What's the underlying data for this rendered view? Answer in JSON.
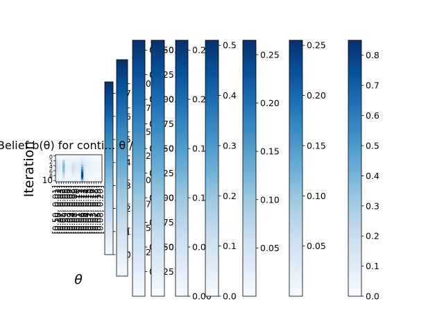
{
  "chart_data": {
    "type": "heatmap",
    "title": "Belief b(θ) for conti… θ /",
    "xlabel": "θ",
    "ylabel": "Iteration",
    "y_ticks": [
      "0",
      "2",
      "4",
      "6",
      "8",
      "10"
    ],
    "colormap": "Blues",
    "heatmap_rows": 11,
    "heatmap_cols": 20,
    "heatmap_values": [
      [
        0.05,
        0.02,
        0.02,
        0.02,
        0.03,
        0.02,
        0.02,
        0.02,
        0.02,
        0.03,
        0.04,
        0.05,
        0.04,
        0.03,
        0.03,
        0.02,
        0.02,
        0.02,
        0.02,
        0.02
      ],
      [
        0.08,
        0.04,
        0.03,
        0.03,
        0.05,
        0.03,
        0.03,
        0.04,
        0.04,
        0.05,
        0.06,
        0.09,
        0.07,
        0.05,
        0.05,
        0.03,
        0.03,
        0.02,
        0.02,
        0.02
      ],
      [
        0.18,
        0.08,
        0.05,
        0.3,
        0.06,
        0.05,
        0.06,
        0.1,
        0.08,
        0.07,
        0.1,
        0.15,
        0.1,
        0.07,
        0.06,
        0.05,
        0.04,
        0.04,
        0.03,
        0.03
      ],
      [
        0.2,
        0.1,
        0.06,
        0.4,
        0.07,
        0.06,
        0.08,
        0.15,
        0.12,
        0.1,
        0.12,
        0.25,
        0.12,
        0.08,
        0.07,
        0.06,
        0.05,
        0.04,
        0.04,
        0.03
      ],
      [
        0.22,
        0.12,
        0.07,
        0.45,
        0.08,
        0.07,
        0.09,
        0.2,
        0.14,
        0.12,
        0.14,
        0.4,
        0.14,
        0.09,
        0.08,
        0.06,
        0.05,
        0.05,
        0.04,
        0.03
      ],
      [
        0.22,
        0.12,
        0.07,
        0.45,
        0.08,
        0.07,
        0.09,
        0.22,
        0.14,
        0.12,
        0.14,
        0.55,
        0.15,
        0.09,
        0.08,
        0.06,
        0.05,
        0.05,
        0.04,
        0.03
      ],
      [
        0.2,
        0.11,
        0.06,
        0.42,
        0.07,
        0.06,
        0.08,
        0.2,
        0.12,
        0.1,
        0.12,
        0.7,
        0.14,
        0.08,
        0.07,
        0.06,
        0.05,
        0.04,
        0.04,
        0.03
      ],
      [
        0.15,
        0.08,
        0.05,
        0.35,
        0.06,
        0.05,
        0.06,
        0.15,
        0.1,
        0.08,
        0.1,
        0.85,
        0.12,
        0.07,
        0.06,
        0.05,
        0.04,
        0.04,
        0.03,
        0.03
      ],
      [
        0.1,
        0.05,
        0.04,
        0.25,
        0.05,
        0.04,
        0.05,
        0.1,
        0.07,
        0.06,
        0.08,
        0.95,
        0.1,
        0.06,
        0.05,
        0.04,
        0.03,
        0.03,
        0.03,
        0.02
      ],
      [
        0.05,
        0.03,
        0.02,
        0.12,
        0.03,
        0.03,
        0.03,
        0.05,
        0.04,
        0.04,
        0.05,
        0.8,
        0.06,
        0.04,
        0.03,
        0.03,
        0.02,
        0.02,
        0.02,
        0.02
      ],
      [
        0.03,
        0.02,
        0.02,
        0.05,
        0.02,
        0.02,
        0.02,
        0.03,
        0.03,
        0.03,
        0.03,
        0.4,
        0.03,
        0.02,
        0.02,
        0.02,
        0.02,
        0.02,
        0.02,
        0.02
      ]
    ],
    "x_tick_labels": [
      "[0.50, 0.01]",
      "[0.10, 0.02]",
      "[0.07, 0.03]",
      "[0.05, 0.03]",
      "[0.99, 0.05]",
      "[0.03, 0.06]",
      "[0.09, 0.07]",
      "[0.04, 0.08]",
      "[0.08, 0.09]",
      "[0.01, 0.10]",
      "[0.01, 0.11]",
      "[0.06, 0.12]",
      "[0.06, 0.13]",
      "[0.04, 0.14]",
      "[0.02, 0.15]",
      "[0.07, 0.16]",
      "[0.03, 0.17]",
      "[0.02, 0.18]",
      "[0.05, 0.19]",
      "[0.08, 0.20]"
    ],
    "colorbars": [
      {
        "vmin": 0.0,
        "vmax": 0.75,
        "ticks": [
          "0.0",
          "0.1",
          "0.2",
          "0.3",
          "0.4",
          "0.5",
          "0.6",
          "0.7"
        ],
        "values": [
          0,
          0.1,
          0.2,
          0.3,
          0.4,
          0.5,
          0.6,
          0.7
        ]
      },
      {
        "vmin": 0.0,
        "vmax": 0.225,
        "ticks": [
          "0.025",
          "0.050",
          "0.075",
          "0.100",
          "0.125",
          "0.150",
          "0.175",
          "0.200"
        ],
        "values": [
          0.025,
          0.05,
          0.075,
          0.1,
          0.125,
          0.15,
          0.175,
          0.2
        ]
      },
      {
        "vmin": 0.0,
        "vmax": 0.26,
        "ticks": [
          "0.025",
          "0.050",
          "0.075",
          "0.100",
          "0.125",
          "0.150",
          "0.175",
          "0.200",
          "0.225",
          "0.250"
        ],
        "values": [
          0.025,
          0.05,
          0.075,
          0.1,
          0.125,
          0.15,
          0.175,
          0.2,
          0.225,
          0.25
        ]
      },
      {
        "vmin": 0.0,
        "vmax": 0.26,
        "ticks": [
          "0.05",
          "0.10",
          "0.15",
          "0.20",
          "0.25"
        ],
        "values": [
          0.05,
          0.1,
          0.15,
          0.2,
          0.25
        ]
      },
      {
        "vmin": 0.0,
        "vmax": 0.26,
        "ticks": [
          "0.00",
          "0.05",
          "0.10",
          "0.15",
          "0.20",
          "0.25"
        ],
        "values": [
          0.0,
          0.05,
          0.1,
          0.15,
          0.2,
          0.25
        ]
      },
      {
        "vmin": 0.0,
        "vmax": 0.51,
        "ticks": [
          "0.0",
          "0.1",
          "0.2",
          "0.3",
          "0.4",
          "0.5"
        ],
        "values": [
          0,
          0.1,
          0.2,
          0.3,
          0.4,
          0.5
        ]
      },
      {
        "vmin": 0.0,
        "vmax": 0.265,
        "ticks": [
          "0.05",
          "0.10",
          "0.15",
          "0.20",
          "0.25"
        ],
        "values": [
          0.05,
          0.1,
          0.15,
          0.2,
          0.25
        ]
      },
      {
        "vmin": 0.0,
        "vmax": 0.255,
        "ticks": [
          "0.05",
          "0.10",
          "0.15",
          "0.20",
          "0.25"
        ],
        "values": [
          0.05,
          0.1,
          0.15,
          0.2,
          0.25
        ]
      },
      {
        "vmin": 0.0,
        "vmax": 0.85,
        "ticks": [
          "0.0",
          "0.1",
          "0.2",
          "0.3",
          "0.4",
          "0.5",
          "0.6",
          "0.7",
          "0.8"
        ],
        "values": [
          0,
          0.1,
          0.2,
          0.3,
          0.4,
          0.5,
          0.6,
          0.7,
          0.8
        ]
      }
    ]
  }
}
